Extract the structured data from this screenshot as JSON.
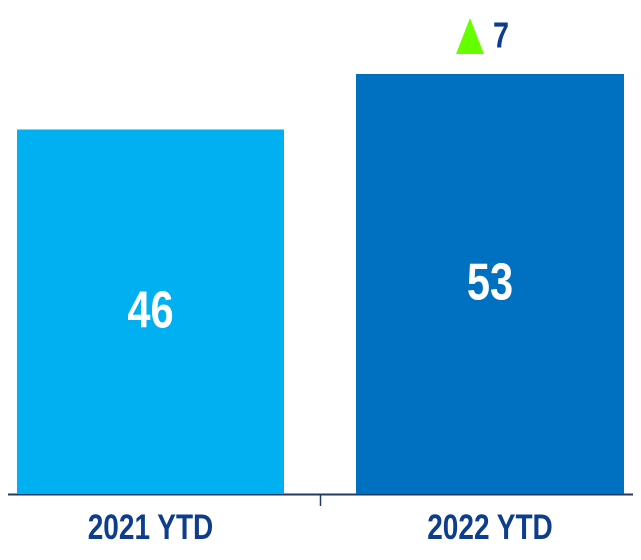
{
  "chart_data": {
    "type": "bar",
    "categories": [
      "2021 YTD",
      "2022 YTD"
    ],
    "values": [
      46,
      53
    ],
    "colors": [
      "#00b0f0",
      "#0070c0"
    ],
    "annotation": 7
  }
}
